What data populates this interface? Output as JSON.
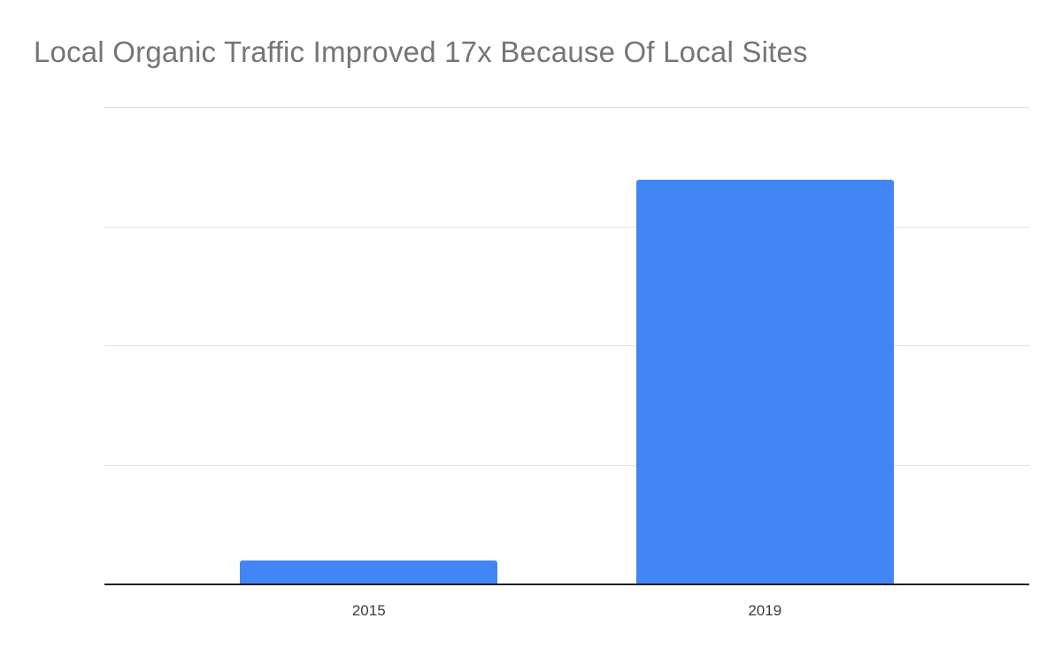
{
  "chart_data": {
    "type": "bar",
    "title": "Local Organic Traffic Improved 17x Because Of Local Sites",
    "categories": [
      "2015",
      "2019"
    ],
    "values": [
      1,
      17
    ],
    "series": [
      {
        "name": "Local Organic Traffic",
        "values": [
          1,
          17
        ]
      }
    ],
    "xlabel": "",
    "ylabel": "",
    "ylim": [
      0,
      20
    ],
    "gridlines": [
      5,
      10,
      15,
      20
    ],
    "grid": true,
    "legend_position": "none",
    "colors": {
      "bar": "#4285f4",
      "title": "#757575",
      "gridline": "#e0e0e0",
      "axis_line": "#1f1f1f",
      "axis_label": "#3c3c3c",
      "background": "#ffffff"
    }
  }
}
